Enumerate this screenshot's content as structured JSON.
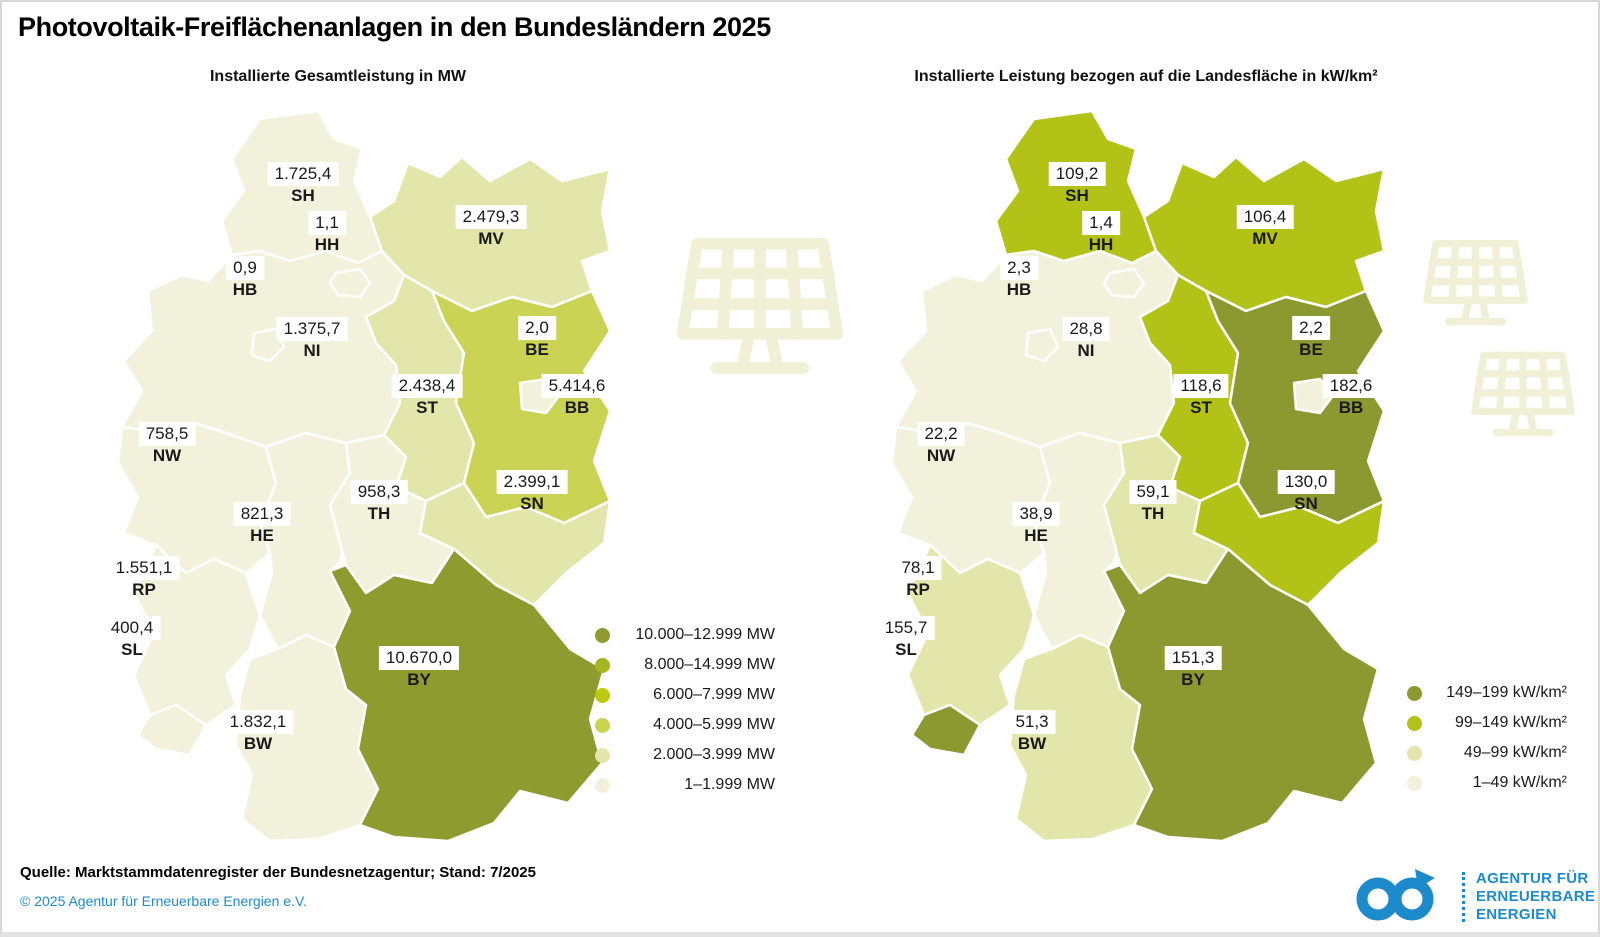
{
  "title": "Photovoltaik-Freiflächenanlagen in den Bundesländern 2025",
  "panels": [
    {
      "subtitle": "Installierte Gesamtleistung in MW",
      "unit": "MW",
      "legend": [
        {
          "label": "10.000–12.999 MW",
          "color": "#8E9B2F"
        },
        {
          "label": "8.000–14.999 MW",
          "color": "#A6B51F"
        },
        {
          "label": "6.000–7.999 MW",
          "color": "#BDC90D"
        },
        {
          "label": "4.000–5.999 MW",
          "color": "#CBD355"
        },
        {
          "label": "2.000–3.999 MW",
          "color": "#E3E6AB"
        },
        {
          "label": "1–1.999 MW",
          "color": "#F1F1DC"
        }
      ],
      "states": [
        {
          "code": "SH",
          "value": "1.725,4",
          "legend_index": 5
        },
        {
          "code": "HH",
          "value": "1,1",
          "legend_index": 5
        },
        {
          "code": "HB",
          "value": "0,9",
          "legend_index": 5
        },
        {
          "code": "NI",
          "value": "1.375,7",
          "legend_index": 5
        },
        {
          "code": "MV",
          "value": "2.479,3",
          "legend_index": 4
        },
        {
          "code": "BE",
          "value": "2,0",
          "legend_index": 5
        },
        {
          "code": "ST",
          "value": "2.438,4",
          "legend_index": 4
        },
        {
          "code": "BB",
          "value": "5.414,6",
          "legend_index": 3
        },
        {
          "code": "NW",
          "value": "758,5",
          "legend_index": 5
        },
        {
          "code": "HE",
          "value": "821,3",
          "legend_index": 5
        },
        {
          "code": "TH",
          "value": "958,3",
          "legend_index": 5
        },
        {
          "code": "SN",
          "value": "2.399,1",
          "legend_index": 4
        },
        {
          "code": "RP",
          "value": "1.551,1",
          "legend_index": 5
        },
        {
          "code": "SL",
          "value": "400,4",
          "legend_index": 5
        },
        {
          "code": "BW",
          "value": "1.832,1",
          "legend_index": 5
        },
        {
          "code": "BY",
          "value": "10.670,0",
          "legend_index": 0
        }
      ]
    },
    {
      "subtitle": "Installierte Leistung bezogen auf die Landesfläche in kW/km²",
      "unit": "kW/km²",
      "legend": [
        {
          "label": "149–199 kW/km²",
          "color": "#8C9930"
        },
        {
          "label": "99–149 kW/km²",
          "color": "#B2C216"
        },
        {
          "label": "49–99 kW/km²",
          "color": "#E3E6AB"
        },
        {
          "label": "1–49 kW/km²",
          "color": "#F1F1DC"
        }
      ],
      "states": [
        {
          "code": "SH",
          "value": "109,2",
          "legend_index": 1
        },
        {
          "code": "HH",
          "value": "1,4",
          "legend_index": 3
        },
        {
          "code": "HB",
          "value": "2,3",
          "legend_index": 3
        },
        {
          "code": "NI",
          "value": "28,8",
          "legend_index": 3
        },
        {
          "code": "MV",
          "value": "106,4",
          "legend_index": 1
        },
        {
          "code": "BE",
          "value": "2,2",
          "legend_index": 3
        },
        {
          "code": "ST",
          "value": "118,6",
          "legend_index": 1
        },
        {
          "code": "BB",
          "value": "182,6",
          "legend_index": 0
        },
        {
          "code": "NW",
          "value": "22,2",
          "legend_index": 3
        },
        {
          "code": "HE",
          "value": "38,9",
          "legend_index": 3
        },
        {
          "code": "TH",
          "value": "59,1",
          "legend_index": 2
        },
        {
          "code": "SN",
          "value": "130,0",
          "legend_index": 1
        },
        {
          "code": "RP",
          "value": "78,1",
          "legend_index": 2
        },
        {
          "code": "SL",
          "value": "155,7",
          "legend_index": 0
        },
        {
          "code": "BW",
          "value": "51,3",
          "legend_index": 2
        },
        {
          "code": "BY",
          "value": "151,3",
          "legend_index": 0
        }
      ]
    }
  ],
  "watermark": {
    "icon": "solar-panel-icon",
    "color": "#EFF0D6"
  },
  "footer": {
    "source": "Quelle: Marktstammdatenregister der Bundesnetzagentur; Stand: 7/2025",
    "copyright": "© 2025 Agentur für Erneuerbare Energien e.V."
  },
  "logo": {
    "icon": "infinity-arrow-icon",
    "color": "#1D8BCB",
    "lines": [
      "AGENTUR FÜR",
      "ERNEUERBARE",
      "ENERGIEN"
    ]
  },
  "chart_data": [
    {
      "type": "heatmap",
      "subtype": "choropleth-germany",
      "title": "Installierte Gesamtleistung in MW",
      "categories": [
        "SH",
        "HH",
        "HB",
        "NI",
        "MV",
        "BE",
        "ST",
        "BB",
        "NW",
        "HE",
        "TH",
        "SN",
        "RP",
        "SL",
        "BW",
        "BY"
      ],
      "values": [
        1725.4,
        1.1,
        0.9,
        1375.7,
        2479.3,
        2.0,
        2438.4,
        5414.6,
        758.5,
        821.3,
        958.3,
        2399.1,
        1551.1,
        400.4,
        1832.1,
        10670.0
      ],
      "value_labels": [
        "1.725,4",
        "1,1",
        "0,9",
        "1.375,7",
        "2.479,3",
        "2,0",
        "2.438,4",
        "5.414,6",
        "758,5",
        "821,3",
        "958,3",
        "2.399,1",
        "1.551,1",
        "400,4",
        "1.832,1",
        "10.670,0"
      ],
      "legend_entries": [
        "10.000–12.999 MW",
        "8.000–14.999 MW",
        "6.000–7.999 MW",
        "4.000–5.999 MW",
        "2.000–3.999 MW",
        "1–1.999 MW"
      ],
      "legend_position": "bottom-right-of-map"
    },
    {
      "type": "heatmap",
      "subtype": "choropleth-germany",
      "title": "Installierte Leistung bezogen auf die Landesfläche in kW/km²",
      "categories": [
        "SH",
        "HH",
        "HB",
        "NI",
        "MV",
        "BE",
        "ST",
        "BB",
        "NW",
        "HE",
        "TH",
        "SN",
        "RP",
        "SL",
        "BW",
        "BY"
      ],
      "values": [
        109.2,
        1.4,
        2.3,
        28.8,
        106.4,
        2.2,
        118.6,
        182.6,
        22.2,
        38.9,
        59.1,
        130.0,
        78.1,
        155.7,
        51.3,
        151.3
      ],
      "value_labels": [
        "109,2",
        "1,4",
        "2,3",
        "28,8",
        "106,4",
        "2,2",
        "118,6",
        "182,6",
        "22,2",
        "38,9",
        "59,1",
        "130,0",
        "78,1",
        "155,7",
        "51,3",
        "151,3"
      ],
      "legend_entries": [
        "149–199 kW/km²",
        "99–149 kW/km²",
        "49–99 kW/km²",
        "1–49 kW/km²"
      ],
      "legend_position": "bottom-right-of-map"
    }
  ]
}
